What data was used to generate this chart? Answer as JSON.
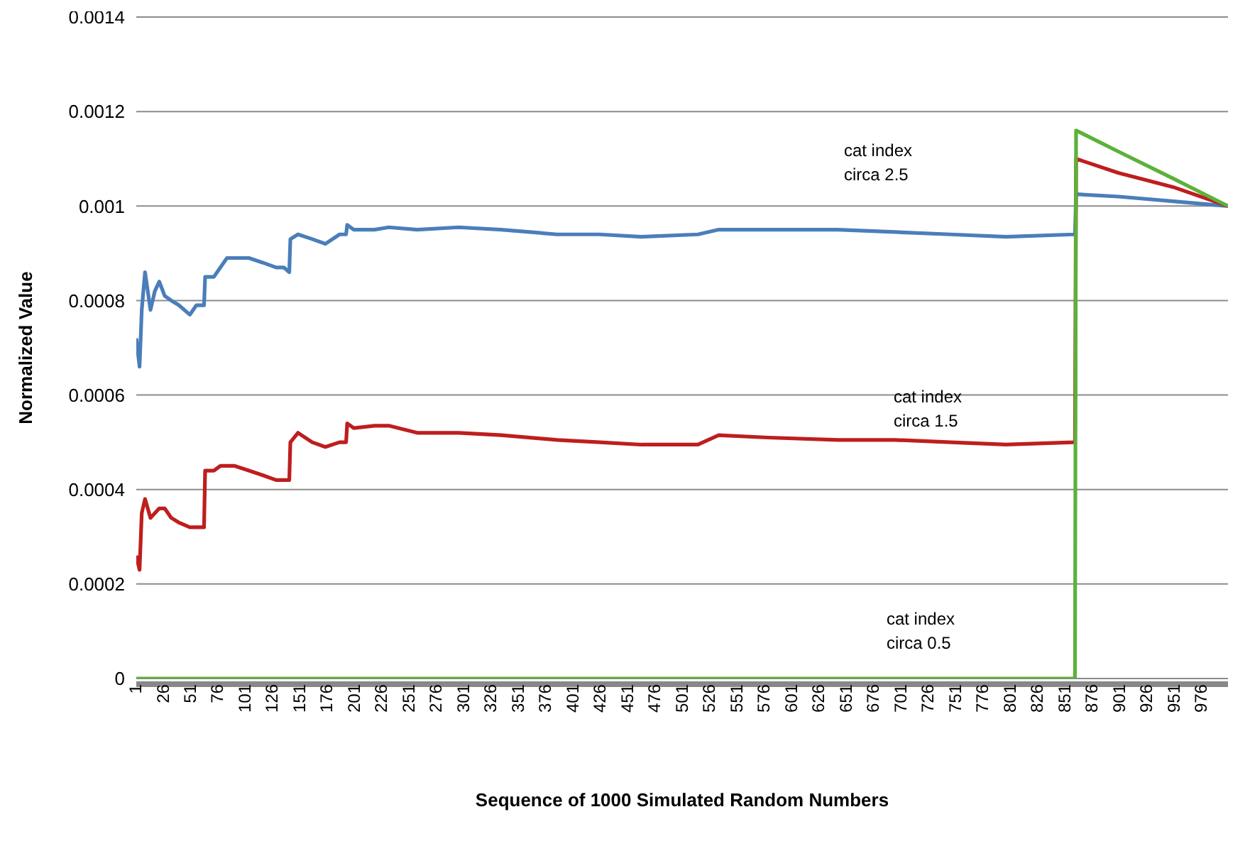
{
  "chart_data": {
    "type": "line",
    "xlabel": "Sequence of 1000 Simulated Random Numbers",
    "ylabel": "Normalized Value",
    "x": [
      1,
      4,
      6,
      9,
      14,
      18,
      22,
      27,
      33,
      40,
      50,
      56,
      61,
      63,
      64,
      72,
      78,
      84,
      91,
      104,
      117,
      129,
      136,
      141,
      142,
      149,
      162,
      174,
      187,
      193,
      194,
      200,
      219,
      232,
      258,
      296,
      335,
      386,
      425,
      463,
      515,
      534,
      579,
      643,
      695,
      746,
      797,
      859,
      860,
      861,
      900,
      950,
      1000
    ],
    "series": [
      {
        "name": "cat index circa  2.5",
        "color": "#4a7ebb",
        "values": [
          0.00072,
          0.00066,
          0.00078,
          0.00086,
          0.00078,
          0.00082,
          0.00084,
          0.00081,
          0.0008,
          0.00079,
          0.00077,
          0.00079,
          0.00079,
          0.00079,
          0.00085,
          0.00085,
          0.00087,
          0.00089,
          0.00089,
          0.00089,
          0.00088,
          0.00087,
          0.00087,
          0.00086,
          0.00093,
          0.00094,
          0.00093,
          0.00092,
          0.00094,
          0.00094,
          0.00096,
          0.00095,
          0.00095,
          0.000955,
          0.00095,
          0.000955,
          0.00095,
          0.00094,
          0.00094,
          0.000935,
          0.00094,
          0.00095,
          0.00095,
          0.00095,
          0.000945,
          0.00094,
          0.000935,
          0.00094,
          0.00094,
          0.001025,
          0.00102,
          0.00101,
          0.001
        ]
      },
      {
        "name": "cat index circa 1.5",
        "color": "#be1e1e",
        "values": [
          0.00026,
          0.00023,
          0.00035,
          0.00038,
          0.00034,
          0.00035,
          0.00036,
          0.00036,
          0.00034,
          0.00033,
          0.00032,
          0.00032,
          0.00032,
          0.00032,
          0.00044,
          0.00044,
          0.00045,
          0.00045,
          0.00045,
          0.00044,
          0.00043,
          0.00042,
          0.00042,
          0.00042,
          0.0005,
          0.00052,
          0.0005,
          0.00049,
          0.0005,
          0.0005,
          0.00054,
          0.00053,
          0.000535,
          0.000535,
          0.00052,
          0.00052,
          0.000515,
          0.000505,
          0.0005,
          0.000495,
          0.000495,
          0.000515,
          0.00051,
          0.000505,
          0.000505,
          0.0005,
          0.000495,
          0.0005,
          0.0005,
          0.0011,
          0.00107,
          0.00104,
          0.001
        ]
      },
      {
        "name": "cat index circa  0.5",
        "color": "#5cb13a",
        "values": [
          0,
          0,
          0,
          0,
          0,
          0,
          0,
          0,
          0,
          0,
          0,
          0,
          0,
          0,
          0,
          0,
          0,
          0,
          0,
          0,
          0,
          0,
          0,
          0,
          0,
          0,
          0,
          0,
          0,
          0,
          0,
          0,
          0,
          0,
          0,
          0,
          0,
          0,
          0,
          0,
          0,
          0,
          0,
          0,
          0,
          0,
          0,
          0,
          0,
          0.00116,
          0.001115,
          0.001058,
          0.001
        ]
      }
    ],
    "xlim": [
      1,
      1000
    ],
    "xticks": [
      1,
      26,
      51,
      76,
      101,
      126,
      151,
      176,
      201,
      226,
      251,
      276,
      301,
      326,
      351,
      376,
      401,
      426,
      451,
      476,
      501,
      526,
      551,
      576,
      601,
      626,
      651,
      676,
      701,
      726,
      751,
      776,
      801,
      826,
      851,
      876,
      901,
      926,
      951,
      976
    ],
    "ylim": [
      0,
      0.0014
    ],
    "yticks": [
      0,
      0.0002,
      0.0004,
      0.0006,
      0.0008,
      0.001,
      0.0012,
      0.0014
    ],
    "grid": "y",
    "legend": false,
    "marker": "none",
    "line_style": "solid"
  }
}
